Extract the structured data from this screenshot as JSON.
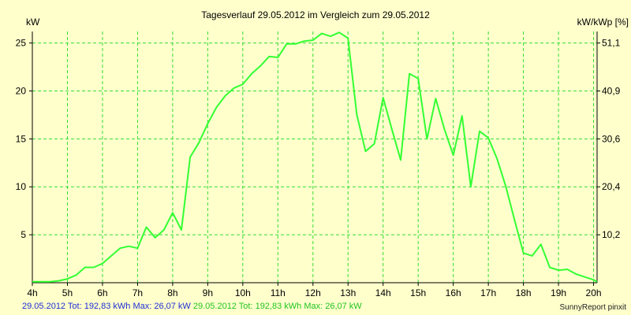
{
  "chart_data": {
    "type": "line",
    "title": "Tagesverlauf 29.05.2012 im Vergleich zum 29.05.2012",
    "ylabel": "kW",
    "ylabel_right": "kW/kWp [%]",
    "xlim": [
      4,
      20.1
    ],
    "ylim": [
      0,
      26.2
    ],
    "x_ticks": [
      4,
      5,
      6,
      7,
      8,
      9,
      10,
      11,
      12,
      13,
      14,
      15,
      16,
      17,
      18,
      19,
      20
    ],
    "x_tick_labels": [
      "4h",
      "5h",
      "6h",
      "7h",
      "8h",
      "9h",
      "10h",
      "11h",
      "12h",
      "13h",
      "14h",
      "15h",
      "16h",
      "17h",
      "18h",
      "19h",
      "20h"
    ],
    "y_ticks": [
      5,
      10,
      15,
      20,
      25
    ],
    "y_tick_labels": [
      "5",
      "10",
      "15",
      "20",
      "25"
    ],
    "y2_tick_labels": [
      "10,2",
      "20,4",
      "30,6",
      "40,9",
      "51,1"
    ],
    "grid": true,
    "colors": {
      "background": "#ffffcc",
      "line": "#33ff33",
      "grid": "#33dd33",
      "axis": "#000000"
    },
    "series": [
      {
        "points": [
          [
            4.0,
            0.1
          ],
          [
            4.25,
            0.1
          ],
          [
            4.5,
            0.1
          ],
          [
            4.75,
            0.2
          ],
          [
            5.0,
            0.4
          ],
          [
            5.25,
            0.8
          ],
          [
            5.5,
            1.6
          ],
          [
            5.75,
            1.6
          ],
          [
            6.0,
            2.0
          ],
          [
            6.25,
            2.8
          ],
          [
            6.5,
            3.6
          ],
          [
            6.75,
            3.8
          ],
          [
            7.0,
            3.6
          ],
          [
            7.25,
            5.8
          ],
          [
            7.5,
            4.7
          ],
          [
            7.75,
            5.5
          ],
          [
            8.0,
            7.3
          ],
          [
            8.25,
            5.5
          ],
          [
            8.5,
            13.1
          ],
          [
            8.75,
            14.6
          ],
          [
            9.0,
            16.6
          ],
          [
            9.25,
            18.3
          ],
          [
            9.5,
            19.5
          ],
          [
            9.75,
            20.3
          ],
          [
            10.0,
            20.7
          ],
          [
            10.25,
            21.8
          ],
          [
            10.5,
            22.6
          ],
          [
            10.75,
            23.6
          ],
          [
            11.0,
            23.5
          ],
          [
            11.25,
            24.9
          ],
          [
            11.5,
            24.9
          ],
          [
            11.75,
            25.2
          ],
          [
            12.0,
            25.3
          ],
          [
            12.25,
            26.0
          ],
          [
            12.5,
            25.7
          ],
          [
            12.75,
            26.1
          ],
          [
            13.0,
            25.5
          ],
          [
            13.25,
            17.5
          ],
          [
            13.5,
            13.7
          ],
          [
            13.75,
            14.5
          ],
          [
            14.0,
            19.3
          ],
          [
            14.25,
            16.0
          ],
          [
            14.5,
            12.8
          ],
          [
            14.75,
            21.8
          ],
          [
            15.0,
            21.3
          ],
          [
            15.25,
            15.0
          ],
          [
            15.5,
            19.2
          ],
          [
            15.75,
            16.0
          ],
          [
            16.0,
            13.3
          ],
          [
            16.25,
            17.4
          ],
          [
            16.5,
            10.0
          ],
          [
            16.75,
            15.8
          ],
          [
            17.0,
            15.1
          ],
          [
            17.25,
            12.9
          ],
          [
            17.5,
            10.0
          ],
          [
            17.75,
            6.5
          ],
          [
            18.0,
            3.1
          ],
          [
            18.25,
            2.8
          ],
          [
            18.5,
            4.0
          ],
          [
            18.75,
            1.6
          ],
          [
            19.0,
            1.3
          ],
          [
            19.25,
            1.4
          ],
          [
            19.5,
            0.9
          ],
          [
            19.75,
            0.6
          ],
          [
            20.0,
            0.3
          ],
          [
            20.1,
            0.1
          ]
        ]
      }
    ]
  },
  "footer": {
    "series1_text": "29.05.2012 Tot: 192,83 kWh Max: 26,07 kW",
    "series2_text": "29.05.2012 Tot: 192,83 kWh Max: 26,07 kW",
    "credit": "SunnyReport pinxit"
  }
}
